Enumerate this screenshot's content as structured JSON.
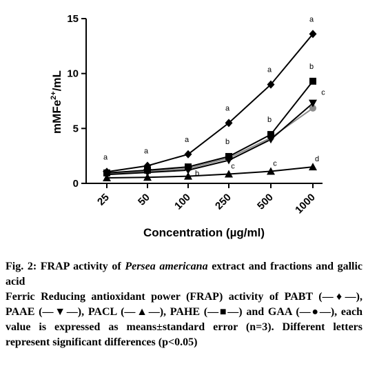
{
  "chart_data": {
    "type": "line",
    "title": "",
    "xlabel": "Concentration (µg/ml)",
    "ylabel_parts": {
      "base": "mMFe",
      "sup": "2+",
      "tail": "/mL"
    },
    "categories": [
      "25",
      "50",
      "100",
      "250",
      "500",
      "1000"
    ],
    "ylim": [
      0,
      15
    ],
    "yticks": [
      "0",
      "5",
      "10",
      "15"
    ],
    "grid": false,
    "legend": "in caption",
    "series": [
      {
        "name": "PABT",
        "marker": "diamond",
        "color": "#000000",
        "values": [
          1.05,
          1.6,
          2.65,
          5.5,
          9.0,
          13.6
        ],
        "letters": [
          "a",
          "a",
          "a",
          "a",
          "a",
          "a"
        ]
      },
      {
        "name": "PAAE",
        "marker": "triangle-down",
        "color": "#000000",
        "values": [
          0.8,
          1.0,
          1.2,
          2.1,
          4.0,
          7.3
        ],
        "letters": [
          null,
          null,
          null,
          null,
          null,
          "c"
        ]
      },
      {
        "name": "PACL",
        "marker": "triangle-up",
        "color": "#000000",
        "values": [
          0.5,
          0.55,
          0.65,
          0.85,
          1.1,
          1.5
        ],
        "letters": [
          null,
          null,
          null,
          "c",
          "c",
          "d"
        ]
      },
      {
        "name": "PAHE",
        "marker": "square",
        "color": "#000000",
        "values": [
          0.95,
          1.2,
          1.5,
          2.45,
          4.45,
          9.3
        ],
        "letters": [
          null,
          null,
          "b",
          "b",
          "b",
          "b"
        ]
      },
      {
        "name": "GAA",
        "marker": "circle",
        "color": "#8c8c8c",
        "values": [
          0.9,
          1.1,
          1.35,
          2.3,
          4.15,
          6.85
        ],
        "letters": [
          null,
          null,
          null,
          null,
          null,
          null
        ]
      }
    ]
  },
  "caption": {
    "fig_label": "Fig. 2:",
    "title_pre": " FRAP activity of ",
    "title_species": "Persea americana",
    "title_post": " extract and fractions and gallic acid",
    "body": "Ferric Reducing antioxidant power (FRAP) activity of PABT (—♦—), PAAE (—▼—), PACL (—▲—), PAHE (—■—) and GAA (—●—), each value is expressed as means±standard error (n=3). Different letters represent significant differences (p<0.05)"
  }
}
